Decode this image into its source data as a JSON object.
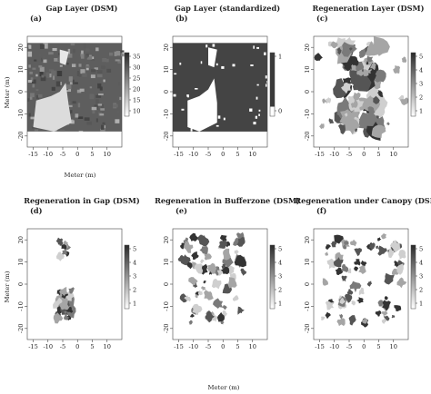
{
  "figure": {
    "panels": [
      {
        "id": "a",
        "tag": "(a)",
        "title": "Gap Layer (DSM)",
        "colorbar": [
          "35",
          "30",
          "25",
          "20",
          "15",
          "10"
        ],
        "style": "gap-dsm"
      },
      {
        "id": "b",
        "tag": "(b)",
        "title": "Gap Layer (standardized)",
        "colorbar": [
          "1",
          "0"
        ],
        "style": "gap-std"
      },
      {
        "id": "c",
        "tag": "(c)",
        "title": "Regeneration Layer (DSM)",
        "colorbar": [
          "5",
          "4",
          "3",
          "2",
          "1"
        ],
        "style": "regen"
      },
      {
        "id": "d",
        "tag": "(d)",
        "title": "Regeneration in Gap (DSM)",
        "colorbar": [
          "5",
          "4",
          "3",
          "2",
          "1"
        ],
        "style": "regen-gap"
      },
      {
        "id": "e",
        "tag": "(e)",
        "title": "Regeneration in Bufferzone (DSM)",
        "colorbar": [
          "5",
          "4",
          "3",
          "2",
          "1"
        ],
        "style": "regen-buffer"
      },
      {
        "id": "f",
        "tag": "(f)",
        "title": "Regeneration under Canopy (DSM)",
        "colorbar": [
          "5",
          "4",
          "3",
          "2",
          "1"
        ],
        "style": "regen-canopy"
      }
    ],
    "x_ticks": [
      "-15",
      "-10",
      "-5",
      "0",
      "5",
      "10"
    ],
    "y_ticks": [
      "20",
      "10",
      "0",
      "-10",
      "-20"
    ],
    "x_label": "Meter (m)",
    "y_label": "Meter (m)"
  },
  "chart_data": [
    {
      "type": "heatmap",
      "title": "Gap Layer (DSM)",
      "xlabel": "",
      "ylabel": "Meter (m)",
      "xlim": [
        -17,
        15
      ],
      "ylim": [
        -25,
        25
      ],
      "x_ticks": [
        -15,
        -10,
        -5,
        0,
        5,
        10
      ],
      "y_ticks": [
        -20,
        -10,
        0,
        10,
        20
      ],
      "colorbar_range": [
        10,
        35
      ]
    },
    {
      "type": "heatmap",
      "title": "Gap Layer (standardized)",
      "xlabel": "",
      "ylabel": "",
      "xlim": [
        -17,
        15
      ],
      "ylim": [
        -25,
        25
      ],
      "x_ticks": [
        -15,
        -10,
        -5,
        0,
        5,
        10
      ],
      "y_ticks": [
        -20,
        -10,
        0,
        10,
        20
      ],
      "colorbar_range": [
        0,
        1
      ]
    },
    {
      "type": "heatmap",
      "title": "Regeneration Layer (DSM)",
      "xlabel": "",
      "ylabel": "",
      "xlim": [
        -17,
        15
      ],
      "ylim": [
        -25,
        25
      ],
      "x_ticks": [
        -15,
        -10,
        -5,
        0,
        5,
        10
      ],
      "y_ticks": [
        -20,
        -10,
        0,
        10,
        20
      ],
      "colorbar_range": [
        0.5,
        5.8
      ]
    },
    {
      "type": "heatmap",
      "title": "Regeneration in Gap (DSM)",
      "xlabel": "",
      "ylabel": "Meter (m)",
      "xlim": [
        -17,
        15
      ],
      "ylim": [
        -25,
        25
      ],
      "x_ticks": [
        -15,
        -10,
        -5,
        0,
        5,
        10
      ],
      "y_ticks": [
        -20,
        -10,
        0,
        10,
        20
      ],
      "colorbar_range": [
        0.5,
        5.8
      ]
    },
    {
      "type": "heatmap",
      "title": "Regeneration in Bufferzone (DSM)",
      "xlabel": "Meter (m)",
      "ylabel": "",
      "xlim": [
        -17,
        15
      ],
      "ylim": [
        -25,
        25
      ],
      "x_ticks": [
        -15,
        -10,
        -5,
        0,
        5,
        10
      ],
      "y_ticks": [
        -20,
        -10,
        0,
        10,
        20
      ],
      "colorbar_range": [
        0.5,
        5.8
      ]
    },
    {
      "type": "heatmap",
      "title": "Regeneration under Canopy (DSM)",
      "xlabel": "",
      "ylabel": "",
      "xlim": [
        -17,
        15
      ],
      "ylim": [
        -25,
        25
      ],
      "x_ticks": [
        -15,
        -10,
        -5,
        0,
        5,
        10
      ],
      "y_ticks": [
        -20,
        -10,
        0,
        10,
        20
      ],
      "colorbar_range": [
        0.5,
        5.8
      ]
    }
  ]
}
